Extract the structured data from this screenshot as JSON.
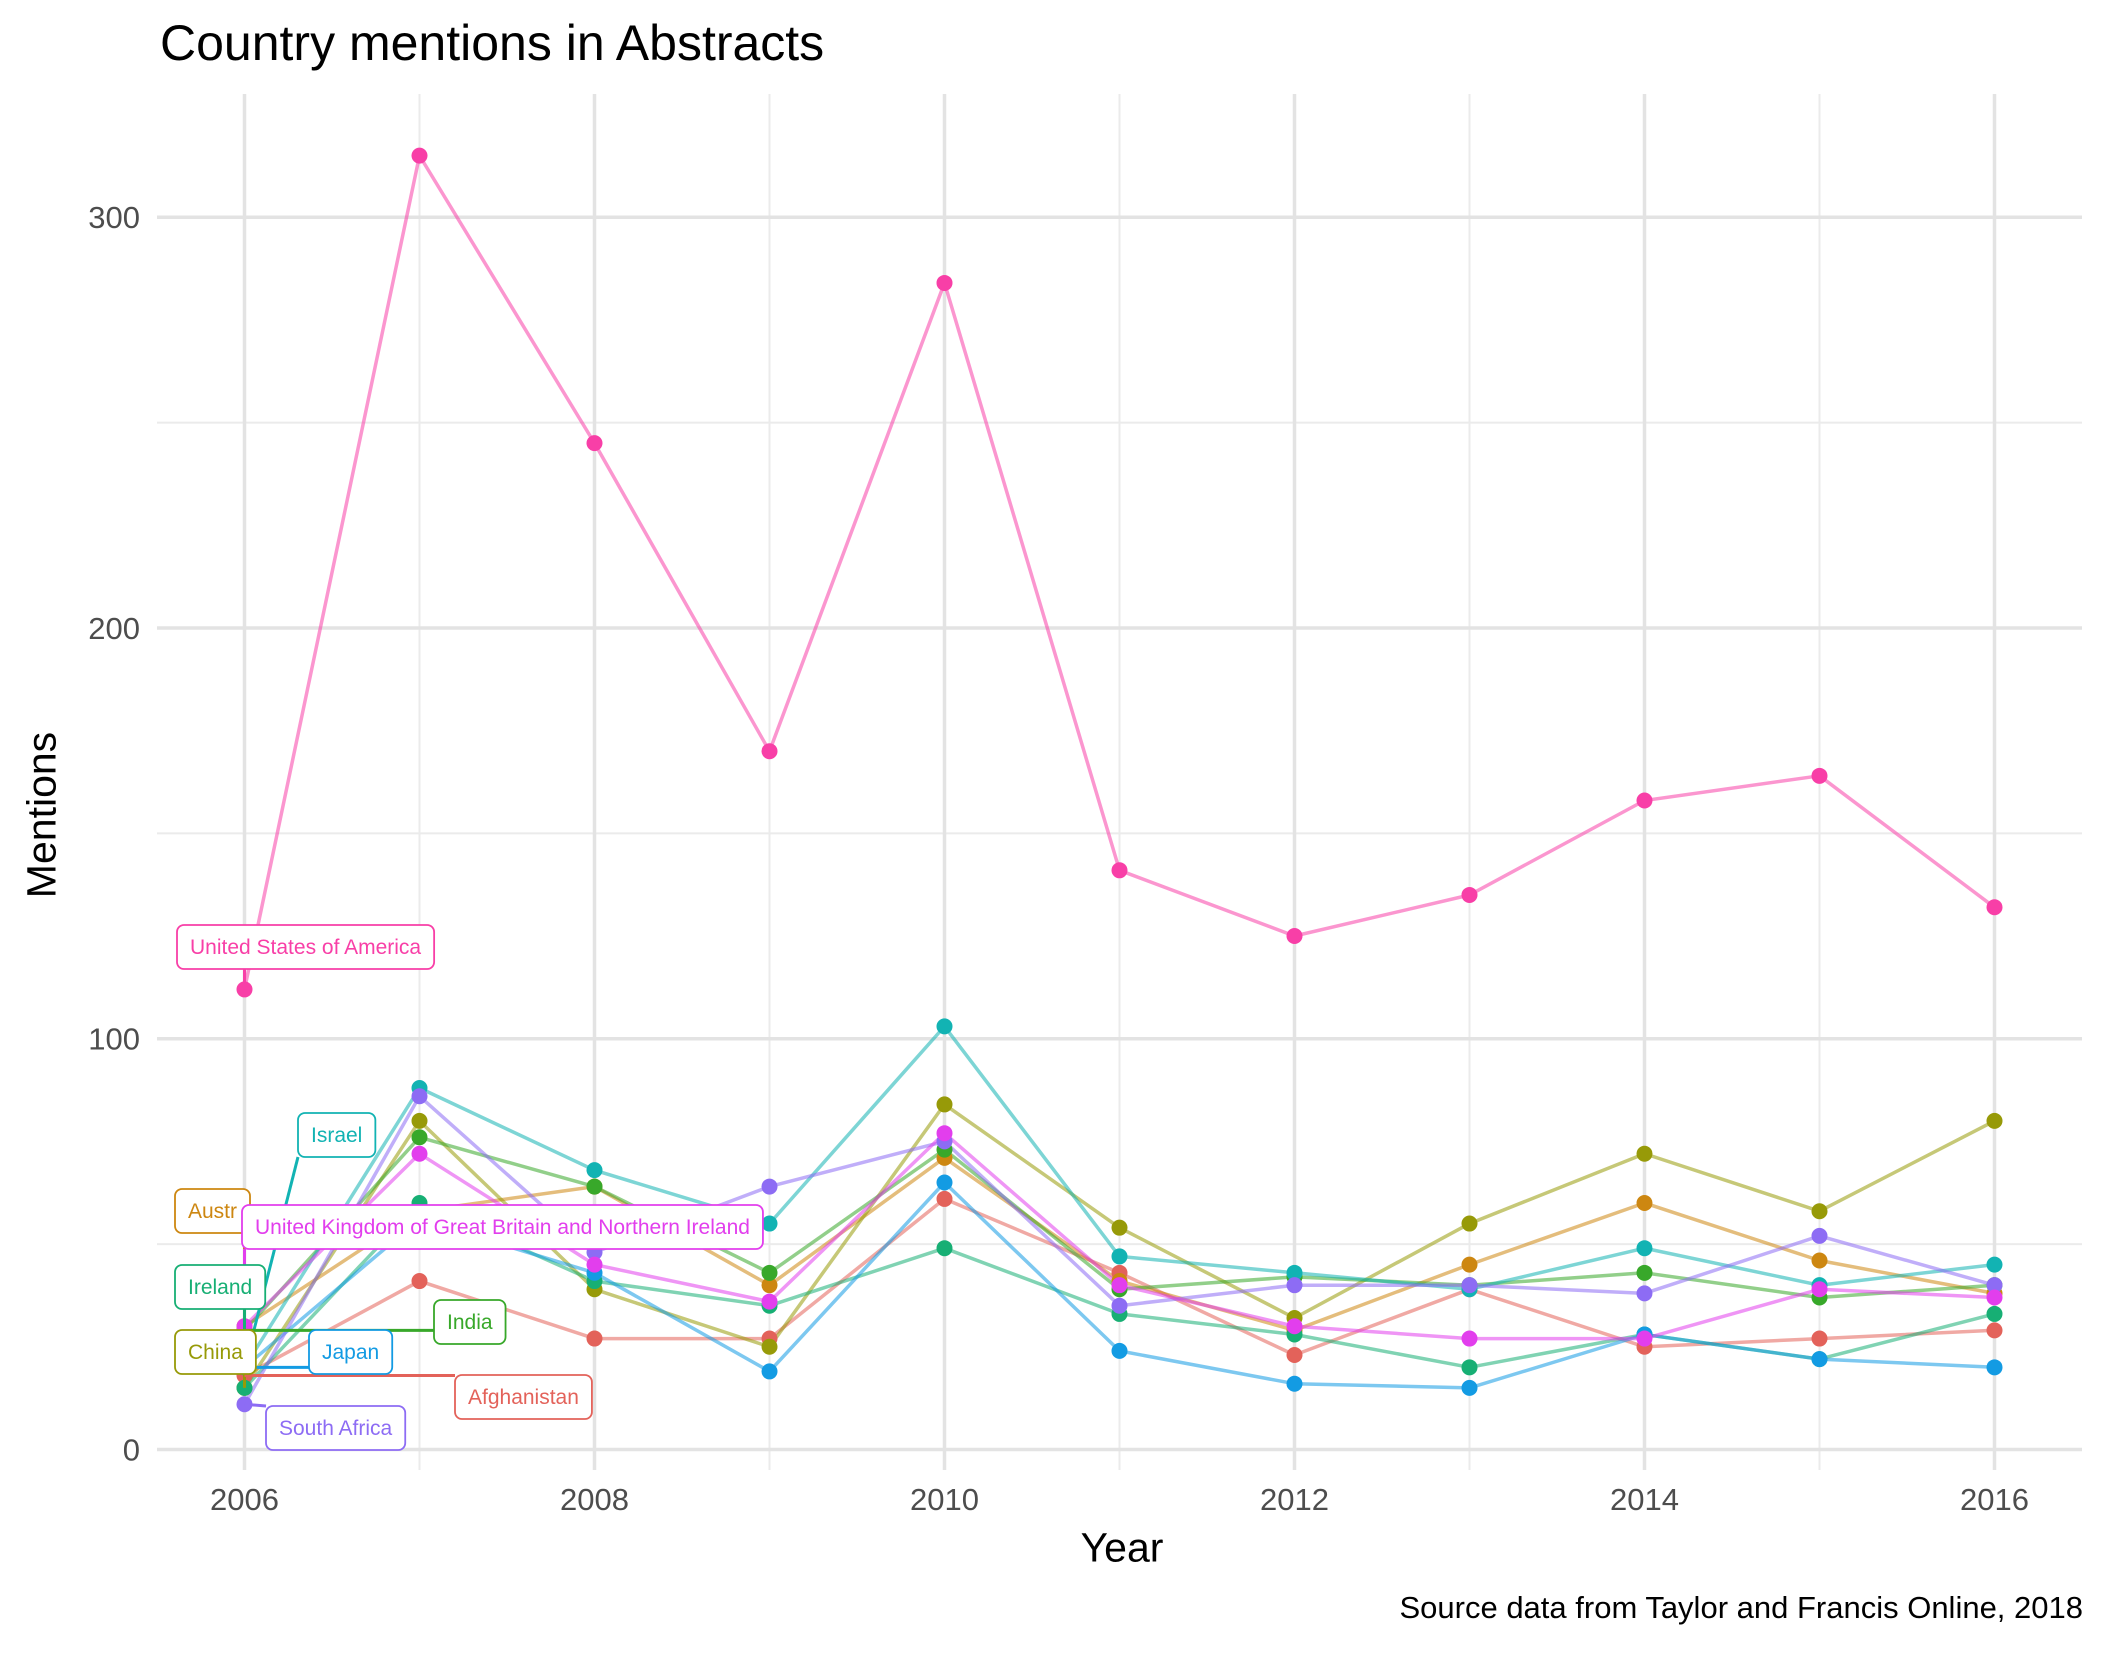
{
  "chart_data": {
    "type": "line",
    "title": "Country mentions in Abstracts",
    "xlabel": "Year",
    "ylabel": "Mentions",
    "caption": "Source data from Taylor and Francis Online, 2018",
    "x": [
      2006,
      2007,
      2008,
      2009,
      2010,
      2011,
      2012,
      2013,
      2014,
      2015,
      2016
    ],
    "xticks": [
      2006,
      2008,
      2010,
      2012,
      2014,
      2016
    ],
    "xtick_labels": [
      "2006",
      "2008",
      "2010",
      "2012",
      "2014",
      "2016"
    ],
    "yticks": [
      0,
      100,
      200,
      300
    ],
    "ytick_labels": [
      "0",
      "100",
      "200",
      "300"
    ],
    "xlim": [
      2005.5,
      2016.5
    ],
    "ylim": [
      -5,
      330
    ],
    "grid": true,
    "legend": "none (direct labels at 2006)",
    "series": [
      {
        "name": "Afghanistan",
        "color": "#e3625a",
        "values": [
          18,
          41,
          27,
          27,
          61,
          43,
          23,
          39,
          25,
          27,
          29
        ]
      },
      {
        "name": "Australia",
        "color": "#cd8711",
        "values": [
          30,
          58,
          64,
          40,
          71,
          41,
          29,
          45,
          60,
          46,
          38
        ]
      },
      {
        "name": "China",
        "color": "#979a08",
        "values": [
          15,
          80,
          39,
          25,
          84,
          54,
          32,
          55,
          72,
          58,
          80
        ]
      },
      {
        "name": "India",
        "color": "#38a82a",
        "values": [
          29,
          76,
          64,
          43,
          73,
          39,
          42,
          40,
          43,
          37,
          40
        ]
      },
      {
        "name": "Ireland",
        "color": "#17af74",
        "values": [
          15,
          60,
          41,
          35,
          49,
          33,
          28,
          20,
          28,
          22,
          33
        ]
      },
      {
        "name": "Israel",
        "color": "#12b3b3",
        "values": [
          20,
          88,
          68,
          55,
          103,
          47,
          43,
          39,
          49,
          40,
          45
        ]
      },
      {
        "name": "Japan",
        "color": "#139be3",
        "values": [
          20,
          56,
          43,
          19,
          65,
          24,
          16,
          15,
          28,
          22,
          20
        ]
      },
      {
        "name": "South Africa",
        "color": "#8d6cf4",
        "values": [
          11,
          86,
          48,
          64,
          75,
          35,
          40,
          40,
          38,
          52,
          40
        ]
      },
      {
        "name": "United Kingdom of Great Britain and Northern Ireland",
        "color": "#e23eed",
        "values": [
          30,
          72,
          45,
          36,
          77,
          40,
          30,
          27,
          27,
          39,
          37
        ]
      },
      {
        "name": "United States of America",
        "color": "#f83fa7",
        "values": [
          112,
          315,
          245,
          170,
          284,
          141,
          125,
          135,
          158,
          164,
          132
        ]
      }
    ],
    "annotations": [
      {
        "series": "United States of America",
        "text": "United States of America"
      },
      {
        "series": "Israel",
        "text": "Israel"
      },
      {
        "series": "Australia",
        "text": "Austr"
      },
      {
        "series": "United Kingdom of Great Britain and Northern Ireland",
        "text": "United Kingdom of Great Britain and Northern Ireland"
      },
      {
        "series": "Ireland",
        "text": "Ireland"
      },
      {
        "series": "India",
        "text": "India"
      },
      {
        "series": "China",
        "text": "China"
      },
      {
        "series": "Japan",
        "text": "Japan"
      },
      {
        "series": "Afghanistan",
        "text": "Afghanistan"
      },
      {
        "series": "South Africa",
        "text": "South Africa"
      }
    ]
  }
}
